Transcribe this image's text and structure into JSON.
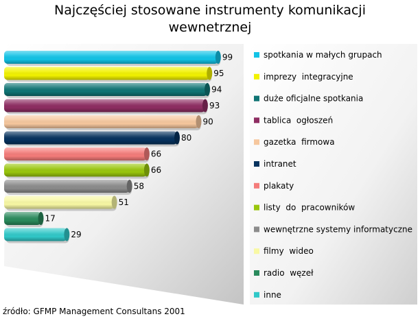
{
  "chart_data": {
    "type": "bar",
    "orientation": "horizontal",
    "title": "Najczęściej stosowane instrumenty komunikacji wewnetrznej",
    "categories": [
      "spotkania w małych grupach",
      "imprezy  integracyjne",
      "duże oficjalne spotkania",
      "tablica  ogłoszeń",
      "gazetka  firmowa",
      "intranet",
      "plakaty",
      "listy  do  pracowników",
      "wewnętrzne systemy informatyczne",
      "filmy  wideo",
      "radio  węzeł",
      "inne"
    ],
    "values": [
      99,
      95,
      94,
      93,
      90,
      80,
      66,
      66,
      58,
      51,
      17,
      29
    ],
    "colors": [
      "#12c3e6",
      "#f2f200",
      "#0f7474",
      "#8e2d62",
      "#f6c79e",
      "#06325e",
      "#f47c7a",
      "#99c60c",
      "#8c8c8c",
      "#f8f8a4",
      "#2a8a5c",
      "#30c8c8"
    ],
    "xlim": [
      0,
      100
    ],
    "grid": false,
    "legend_position": "right",
    "source": "źródło: GFMP Management Consultans 2001"
  }
}
